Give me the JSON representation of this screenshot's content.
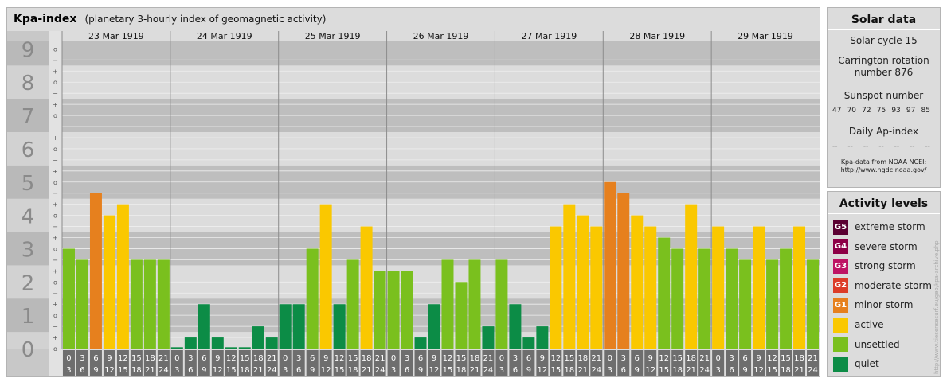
{
  "header": {
    "title": "Kpa-index",
    "subtitle": "(planetary 3-hourly index of geomagnetic activity)"
  },
  "chart_data": {
    "type": "bar",
    "title": "Kpa-index",
    "subtitle": "(planetary 3-hourly index of geomagnetic activity)",
    "y_ticks": [
      "0",
      "1",
      "2",
      "3",
      "4",
      "5",
      "6",
      "7",
      "8",
      "9"
    ],
    "y_minor_labels": [
      "o",
      "+",
      "−"
    ],
    "ylim": [
      0,
      9
    ],
    "days": [
      "23 Mar 1919",
      "24 Mar 1919",
      "25 Mar 1919",
      "26 Mar 1919",
      "27 Mar 1919",
      "28 Mar 1919",
      "29 Mar 1919"
    ],
    "interval_top": [
      "0",
      "3",
      "6",
      "9",
      "12",
      "15",
      "18",
      "21"
    ],
    "interval_bottom": [
      "3",
      "6",
      "9",
      "12",
      "15",
      "18",
      "21",
      "24"
    ],
    "values": [
      [
        3.0,
        2.667,
        4.667,
        4.0,
        4.333,
        2.667,
        2.667,
        2.667
      ],
      [
        0.0,
        0.333,
        1.333,
        0.333,
        0.0,
        0.0,
        0.667,
        0.333
      ],
      [
        1.333,
        1.333,
        3.0,
        4.333,
        1.333,
        2.667,
        3.667,
        2.333
      ],
      [
        2.333,
        2.333,
        0.333,
        1.333,
        2.667,
        2.0,
        2.667,
        0.667
      ],
      [
        2.667,
        1.333,
        0.333,
        0.667,
        3.667,
        4.333,
        4.0,
        3.667
      ],
      [
        5.0,
        4.667,
        4.0,
        3.667,
        3.333,
        3.0,
        4.333,
        3.0
      ],
      [
        3.667,
        3.0,
        2.667,
        3.667,
        2.667,
        3.0,
        3.667,
        2.667
      ]
    ],
    "levels": [
      {
        "name": "quiet",
        "color": "#0c8c46"
      },
      {
        "name": "unsettled",
        "color": "#7ac01e"
      },
      {
        "name": "active",
        "color": "#fac800"
      },
      {
        "name": "minor storm",
        "color": "#e6801e"
      }
    ],
    "grid": true
  },
  "solar_data": {
    "title": "Solar data",
    "solar_cycle": "Solar cycle 15",
    "carrington": "Carrington rotation number 876",
    "sunspot_label": "Sunspot number",
    "sunspot_numbers": [
      "47",
      "70",
      "72",
      "75",
      "93",
      "97",
      "85"
    ],
    "ap_label": "Daily Ap-index",
    "ap_values": [
      "--",
      "--",
      "--",
      "--",
      "--",
      "--",
      "--"
    ],
    "source_line1": "Kpa-data from NOAA NCEI:",
    "source_line2": "http://www.ngdc.noaa.gov/"
  },
  "activity_levels": {
    "title": "Activity levels",
    "items": [
      {
        "code": "G5",
        "label": "extreme storm",
        "color": "#5a0032"
      },
      {
        "code": "G4",
        "label": "severe storm",
        "color": "#8c0046"
      },
      {
        "code": "G3",
        "label": "strong storm",
        "color": "#be1464"
      },
      {
        "code": "G2",
        "label": "moderate storm",
        "color": "#dc3c28"
      },
      {
        "code": "G1",
        "label": "minor storm",
        "color": "#e6801e"
      },
      {
        "code": "",
        "label": "active",
        "color": "#fac800"
      },
      {
        "code": "",
        "label": "unsettled",
        "color": "#7ac01e"
      },
      {
        "code": "",
        "label": "quiet",
        "color": "#0c8c46"
      }
    ]
  },
  "credit": "http://www.tiesensesurf.eu/geo/kpa-archive.php"
}
